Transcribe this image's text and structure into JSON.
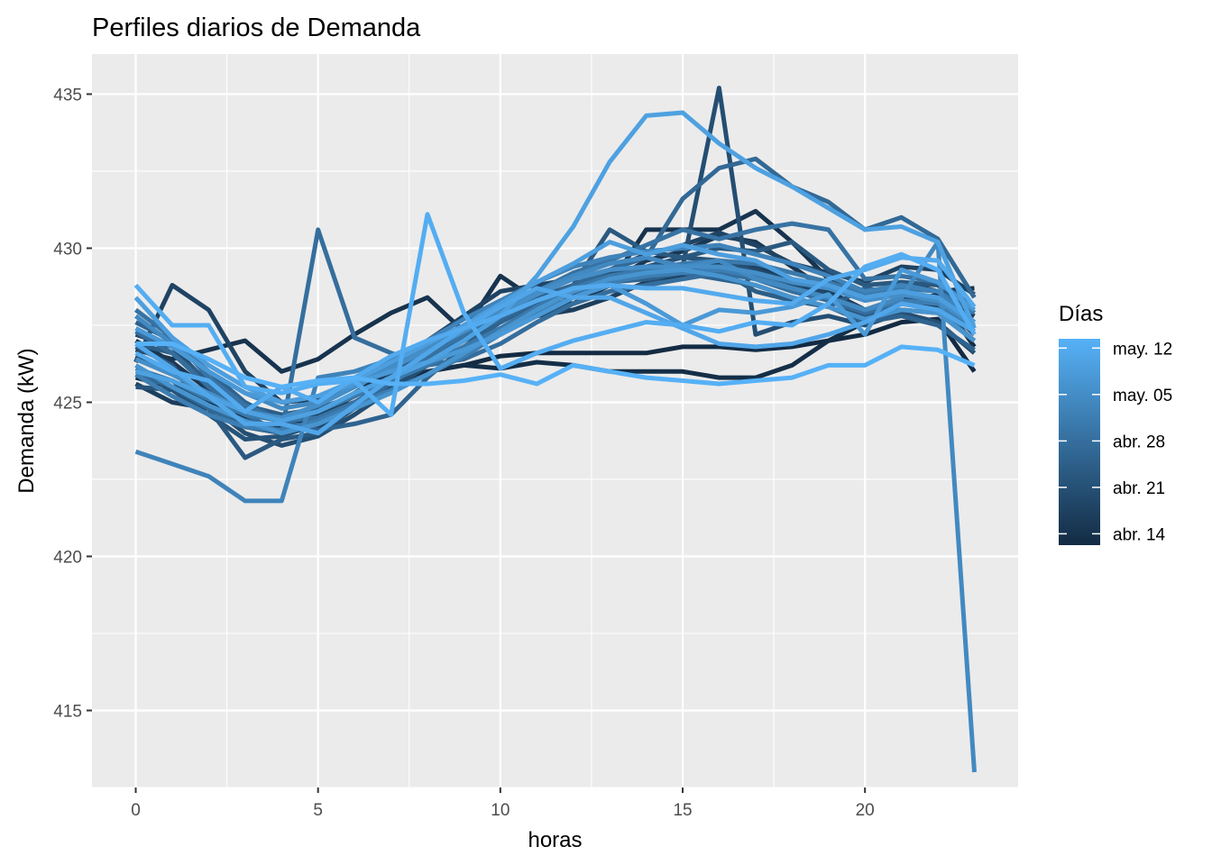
{
  "chart_data": {
    "type": "line",
    "title": "Perfiles diarios de Demanda",
    "xlabel": "horas",
    "ylabel": "Demanda (kW)",
    "xlim": [
      -1.2,
      24.2
    ],
    "ylim": [
      412.5,
      436.3
    ],
    "x_ticks": [
      0,
      5,
      10,
      15,
      20
    ],
    "y_ticks": [
      415,
      420,
      425,
      430,
      435
    ],
    "x": [
      0,
      1,
      2,
      3,
      4,
      5,
      6,
      7,
      8,
      9,
      10,
      11,
      12,
      13,
      14,
      15,
      16,
      17,
      18,
      19,
      20,
      21,
      22,
      23
    ],
    "grid": true,
    "legend": {
      "title": "Días",
      "position": "right",
      "type": "colorbar",
      "labels": [
        "may. 12",
        "may. 05",
        "abr. 28",
        "abr. 21",
        "abr. 14"
      ],
      "low_color": "#132B43",
      "high_color": "#56B1F7"
    },
    "colors": {
      "panel_background": "#EBEBEB",
      "grid": "#FFFFFF",
      "low": "#132B43",
      "high": "#56B1F7"
    },
    "series": [
      {
        "shade": 0.0,
        "values": [
          426.5,
          426.0,
          425.0,
          424.2,
          424.0,
          424.6,
          425.0,
          425.5,
          426.0,
          426.2,
          426.5,
          426.6,
          426.6,
          426.6,
          426.6,
          426.8,
          426.8,
          426.7,
          426.8,
          427.0,
          427.2,
          427.6,
          427.7,
          426.0
        ]
      },
      {
        "shade": 0.02,
        "values": [
          425.8,
          425.5,
          425.2,
          424.5,
          424.1,
          424.4,
          425.0,
          425.6,
          426.0,
          426.2,
          426.1,
          426.3,
          426.2,
          426.0,
          426.0,
          426.0,
          425.8,
          425.8,
          426.2,
          427.0,
          427.6,
          428.2,
          428.5,
          426.8
        ]
      },
      {
        "shade": 0.06,
        "values": [
          426.7,
          426.4,
          426.7,
          427.0,
          426.0,
          426.4,
          427.2,
          427.9,
          428.4,
          427.3,
          429.1,
          428.3,
          428.2,
          428.8,
          430.6,
          430.6,
          430.6,
          431.2,
          430.2,
          429.0,
          428.4,
          428.9,
          428.6,
          428.7
        ]
      },
      {
        "shade": 0.1,
        "values": [
          427.0,
          426.3,
          425.4,
          424.8,
          424.4,
          424.5,
          425.3,
          426.0,
          426.4,
          427.2,
          428.3,
          428.5,
          428.5,
          428.9,
          429.6,
          429.9,
          430.4,
          430.2,
          429.4,
          428.6,
          428.0,
          428.3,
          428.4,
          427.8
        ]
      },
      {
        "shade": 0.14,
        "values": [
          425.6,
          425.0,
          424.8,
          424.3,
          424.2,
          424.6,
          425.2,
          425.8,
          426.2,
          426.8,
          427.4,
          427.8,
          428.0,
          428.4,
          428.9,
          429.1,
          429.5,
          429.4,
          429.0,
          428.6,
          428.0,
          428.2,
          428.1,
          427.5
        ]
      },
      {
        "shade": 0.18,
        "values": [
          426.3,
          428.8,
          428.0,
          426.0,
          425.0,
          425.1,
          425.6,
          426.3,
          427.0,
          427.8,
          428.6,
          428.8,
          429.0,
          429.3,
          429.8,
          430.1,
          430.5,
          430.1,
          429.5,
          429.2,
          428.9,
          429.4,
          429.3,
          428.5
        ]
      },
      {
        "shade": 0.22,
        "values": [
          427.2,
          426.8,
          425.6,
          424.6,
          424.0,
          424.2,
          424.9,
          425.6,
          426.3,
          427.0,
          427.6,
          428.2,
          428.6,
          429.0,
          429.2,
          429.4,
          429.6,
          429.3,
          428.9,
          428.5,
          428.0,
          428.4,
          428.3,
          427.2
        ]
      },
      {
        "shade": 0.26,
        "values": [
          426.0,
          425.7,
          424.9,
          424.0,
          423.6,
          423.9,
          424.6,
          425.4,
          426.2,
          426.8,
          427.2,
          427.8,
          428.2,
          428.6,
          428.8,
          429.4,
          435.2,
          427.2,
          427.6,
          427.8,
          427.5,
          427.9,
          427.6,
          426.6
        ]
      },
      {
        "shade": 0.3,
        "values": [
          425.5,
          425.4,
          424.6,
          423.8,
          423.9,
          424.3,
          425.0,
          425.7,
          426.3,
          427.0,
          427.7,
          428.3,
          428.8,
          429.2,
          429.4,
          429.7,
          429.6,
          429.2,
          428.8,
          428.3,
          427.8,
          428.0,
          427.9,
          427.0
        ]
      },
      {
        "shade": 0.34,
        "values": [
          426.8,
          426.2,
          424.8,
          423.2,
          423.8,
          424.0,
          424.8,
          425.9,
          426.8,
          427.5,
          428.0,
          428.3,
          428.8,
          430.6,
          429.9,
          429.7,
          430.0,
          429.9,
          430.2,
          429.3,
          428.8,
          428.9,
          428.8,
          427.9
        ]
      },
      {
        "shade": 0.38,
        "values": [
          426.9,
          426.6,
          425.7,
          424.9,
          424.6,
          424.8,
          425.2,
          425.8,
          426.5,
          427.1,
          427.8,
          428.4,
          428.8,
          429.1,
          429.1,
          429.3,
          429.3,
          428.6,
          428.3,
          428.1,
          428.7,
          428.5,
          428.3,
          427.6
        ]
      },
      {
        "shade": 0.42,
        "values": [
          427.6,
          427.0,
          426.0,
          425.0,
          424.4,
          424.1,
          424.3,
          424.6,
          425.8,
          426.8,
          427.6,
          428.2,
          428.5,
          428.9,
          429.0,
          429.2,
          429.0,
          428.8,
          428.4,
          428.1,
          427.6,
          427.8,
          427.5,
          426.7
        ]
      },
      {
        "shade": 0.46,
        "values": [
          425.9,
          425.5,
          424.8,
          424.2,
          424.0,
          424.3,
          424.9,
          425.6,
          426.4,
          427.1,
          427.7,
          428.3,
          428.8,
          429.3,
          429.7,
          431.6,
          432.6,
          432.9,
          432.0,
          431.5,
          430.6,
          431.0,
          430.3,
          428.4
        ]
      },
      {
        "shade": 0.5,
        "values": [
          427.3,
          426.6,
          425.5,
          424.6,
          424.0,
          430.6,
          427.1,
          426.6,
          426.2,
          426.4,
          426.9,
          427.6,
          428.2,
          428.6,
          428.8,
          429.0,
          429.2,
          429.0,
          428.6,
          428.3,
          427.9,
          428.2,
          428.0,
          427.0
        ]
      },
      {
        "shade": 0.54,
        "values": [
          428.0,
          427.1,
          425.8,
          424.9,
          424.4,
          424.5,
          425.0,
          425.7,
          426.5,
          427.2,
          427.9,
          428.6,
          429.2,
          429.6,
          430.1,
          430.6,
          430.3,
          430.6,
          430.8,
          430.6,
          429.0,
          429.1,
          428.9,
          428.1
        ]
      },
      {
        "shade": 0.58,
        "values": [
          426.1,
          425.7,
          425.1,
          424.6,
          424.4,
          424.7,
          425.2,
          425.7,
          426.2,
          426.8,
          427.4,
          428.1,
          428.7,
          429.1,
          429.3,
          429.5,
          429.6,
          429.5,
          429.2,
          428.9,
          428.5,
          428.7,
          428.6,
          427.9
        ]
      },
      {
        "shade": 0.62,
        "values": [
          425.9,
          425.2,
          424.6,
          424.2,
          424.1,
          424.4,
          424.9,
          425.4,
          425.9,
          426.5,
          427.2,
          427.9,
          428.4,
          428.9,
          429.1,
          429.2,
          429.3,
          429.1,
          428.7,
          428.4,
          428.0,
          428.3,
          428.2,
          427.3
        ]
      },
      {
        "shade": 0.66,
        "values": [
          423.4,
          423.0,
          422.6,
          421.8,
          421.8,
          425.8,
          426.0,
          426.4,
          427.0,
          427.7,
          428.3,
          428.9,
          429.4,
          429.7,
          429.9,
          430.0,
          430.1,
          429.8,
          429.5,
          429.1,
          428.6,
          428.8,
          428.6,
          427.6
        ]
      },
      {
        "shade": 0.7,
        "values": [
          427.8,
          426.9,
          426.0,
          425.3,
          424.8,
          425.0,
          425.6,
          426.2,
          426.8,
          427.4,
          428.0,
          428.6,
          429.1,
          429.5,
          429.7,
          429.4,
          429.6,
          429.0,
          428.7,
          428.4,
          428.0,
          428.4,
          430.2,
          413.0
        ]
      },
      {
        "shade": 0.74,
        "values": [
          426.4,
          425.9,
          425.3,
          424.7,
          424.5,
          424.9,
          425.5,
          426.1,
          426.7,
          427.3,
          427.9,
          428.5,
          429.0,
          429.3,
          429.4,
          429.4,
          429.4,
          429.2,
          428.9,
          428.7,
          428.3,
          428.5,
          428.3,
          427.5
        ]
      },
      {
        "shade": 0.78,
        "values": [
          426.2,
          425.5,
          424.9,
          424.4,
          424.0,
          424.3,
          424.8,
          425.3,
          425.9,
          426.6,
          427.3,
          428.0,
          428.6,
          429.0,
          429.2,
          429.3,
          429.1,
          428.8,
          428.4,
          428.1,
          427.7,
          428.0,
          427.9,
          427.0
        ]
      },
      {
        "shade": 0.82,
        "values": [
          427.4,
          426.8,
          426.0,
          425.3,
          425.0,
          425.2,
          425.6,
          426.0,
          426.3,
          426.7,
          427.2,
          427.8,
          428.4,
          428.8,
          428.2,
          427.5,
          428.0,
          427.9,
          428.1,
          428.5,
          427.2,
          429.3,
          428.9,
          428.0
        ]
      },
      {
        "shade": 0.86,
        "values": [
          428.4,
          427.1,
          426.2,
          425.5,
          425.0,
          425.2,
          425.7,
          426.3,
          426.9,
          427.5,
          428.2,
          428.9,
          429.5,
          430.2,
          429.8,
          430.1,
          429.8,
          429.6,
          429.0,
          428.8,
          428.4,
          428.6,
          428.4,
          427.6
        ]
      },
      {
        "shade": 0.88,
        "values": [
          426.0,
          425.7,
          425.2,
          424.7,
          424.4,
          424.7,
          425.3,
          425.8,
          426.3,
          427.0,
          427.8,
          429.1,
          430.7,
          432.8,
          434.3,
          434.4,
          433.4,
          432.6,
          432.0,
          431.3,
          430.6,
          430.7,
          430.2,
          427.4
        ]
      },
      {
        "shade": 0.92,
        "values": [
          426.9,
          426.1,
          425.2,
          424.3,
          424.3,
          424.0,
          424.9,
          425.8,
          426.6,
          427.4,
          428.1,
          428.7,
          428.4,
          428.4,
          427.9,
          427.4,
          426.9,
          426.8,
          426.9,
          427.2,
          427.6,
          428.2,
          428.0,
          427.3
        ]
      },
      {
        "shade": 0.95,
        "values": [
          426.6,
          426.0,
          425.7,
          424.7,
          425.5,
          425.0,
          425.8,
          426.5,
          427.0,
          427.4,
          427.8,
          428.3,
          428.7,
          428.8,
          428.7,
          428.7,
          428.5,
          428.3,
          428.2,
          429.0,
          429.3,
          429.7,
          429.6,
          428.1
        ]
      },
      {
        "shade": 0.97,
        "values": [
          428.8,
          427.5,
          427.5,
          425.5,
          425.3,
          425.6,
          425.7,
          424.6,
          431.1,
          427.9,
          426.1,
          426.6,
          427.0,
          427.3,
          427.6,
          427.5,
          427.3,
          427.6,
          427.5,
          428.2,
          429.4,
          429.8,
          429.3,
          427.2
        ]
      },
      {
        "shade": 1.0,
        "values": [
          426.9,
          426.9,
          426.4,
          425.8,
          425.5,
          425.7,
          425.8,
          425.6,
          425.6,
          425.7,
          425.9,
          425.6,
          426.2,
          426.0,
          425.8,
          425.7,
          425.6,
          425.7,
          425.8,
          426.2,
          426.2,
          426.8,
          426.7,
          426.2
        ]
      }
    ]
  }
}
